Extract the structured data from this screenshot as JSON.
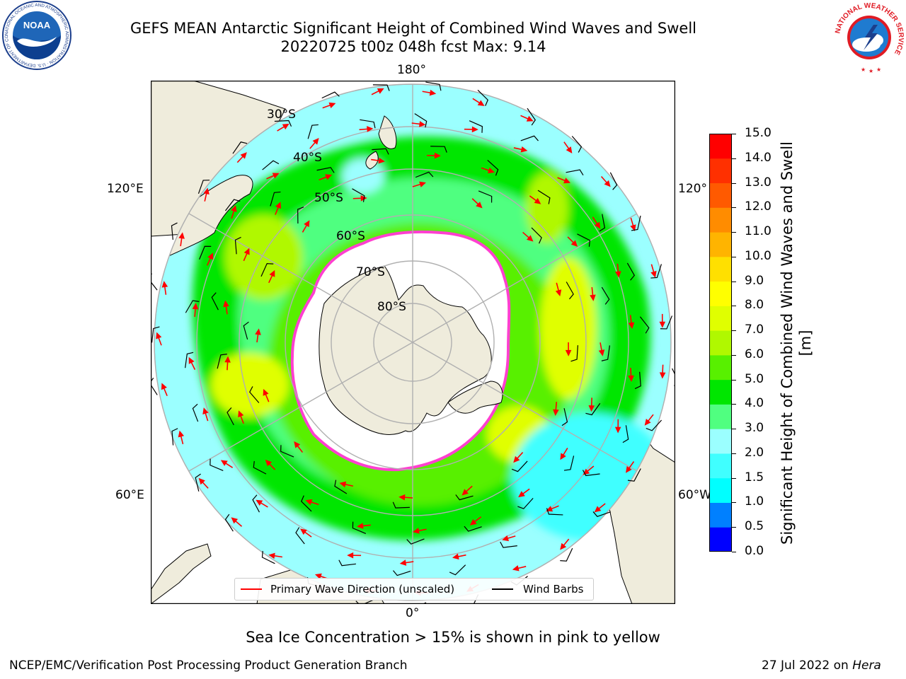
{
  "title": {
    "line1": "GEFS MEAN Antarctic Significant Height of Combined Wind Waves and Swell",
    "line2": "20220725 t00z 048h fcst   Max: 9.14"
  },
  "logos": {
    "left_text": "NOAA",
    "left_ring": "NATIONAL OCEANIC AND ATMOSPHERIC ADMINISTRATION · U.S. DEPARTMENT OF COMMERCE",
    "right_ring": "NATIONAL WEATHER SERVICE"
  },
  "map": {
    "longitude_labels": [
      "180°",
      "120°E",
      "120°",
      "60°E",
      "60°W",
      "0°"
    ],
    "latitude_labels": [
      "30°S",
      "40°S",
      "50°S",
      "60°S",
      "70°S",
      "80°S"
    ],
    "ocean_color": "#ffffff",
    "land_color": "#efecdc"
  },
  "colorbar": {
    "label": "Significant Height of Combined Wind Waves and Swell [m]",
    "ticks": [
      "0.0",
      "0.5",
      "1.0",
      "1.5",
      "2.0",
      "3.0",
      "4.0",
      "5.0",
      "6.0",
      "7.0",
      "8.0",
      "9.0",
      "10.0",
      "11.0",
      "12.0",
      "13.0",
      "14.0",
      "15.0"
    ],
    "colors": [
      "#0000ff",
      "#0080ff",
      "#00ffff",
      "#40ffff",
      "#9bffff",
      "#50ff80",
      "#00e600",
      "#58f000",
      "#b0f800",
      "#e0ff00",
      "#ffff00",
      "#ffe000",
      "#ffb400",
      "#ff8c00",
      "#ff5a00",
      "#ff3000",
      "#ff0000"
    ]
  },
  "legend": {
    "wave_label": "Primary Wave Direction (unscaled)",
    "wave_color": "#ff0000",
    "barb_label": "Wind Barbs",
    "barb_color": "#000000"
  },
  "caption": "Sea Ice Concentration > 15% is shown in pink to yellow",
  "footer": {
    "left": "NCEP/EMC/Verification Post Processing Product Generation Branch",
    "right_prefix": "27 Jul 2022 on ",
    "right_italic": "Hera"
  }
}
